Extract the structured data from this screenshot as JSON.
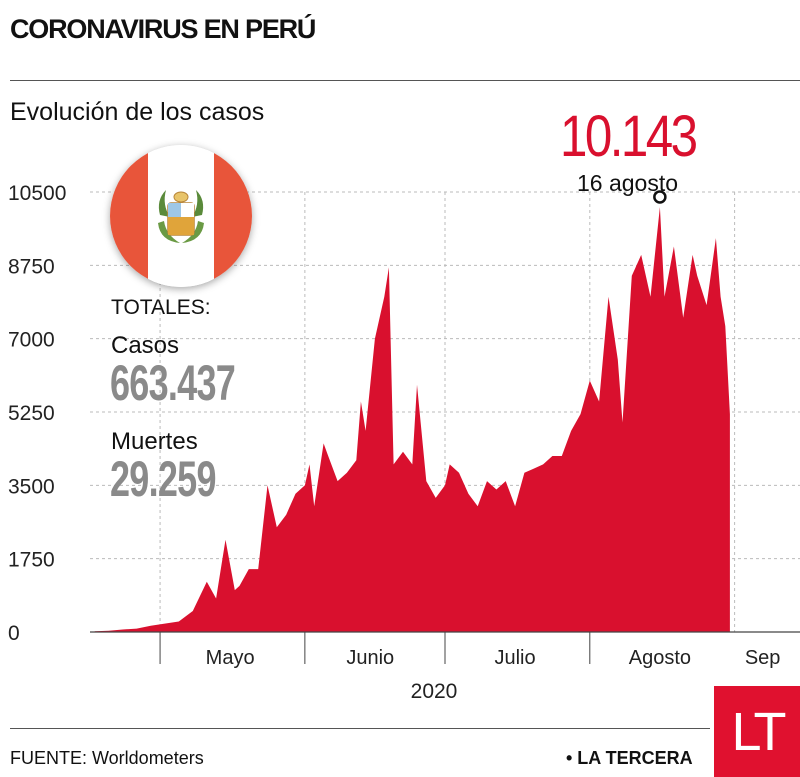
{
  "header": {
    "title": "CORONAVIRUS EN PERÚ",
    "subtitle": "Evolución de los casos"
  },
  "peak": {
    "value": "10.143",
    "date": "16 agosto"
  },
  "totals": {
    "label": "TOTALES:",
    "cases_label": "Casos",
    "cases_value": "663.437",
    "deaths_label": "Muertes",
    "deaths_value": "29.259"
  },
  "footer": {
    "source": "FUENTE: Worldometers",
    "brand": "• LA TERCERA",
    "logo_text": "LT"
  },
  "colors": {
    "series": "#d9102e",
    "grid": "#bbbbbb",
    "flag_red": "#e8553a"
  },
  "chart_data": {
    "type": "area",
    "title": "Evolución de los casos",
    "xlabel": "2020",
    "ylabel": "",
    "ylim": [
      0,
      10500
    ],
    "yticks": [
      "0",
      "1750",
      "3500",
      "5250",
      "7000",
      "8750",
      "10500"
    ],
    "ytick_values": [
      0,
      1750,
      3500,
      5250,
      7000,
      8750,
      10500
    ],
    "month_labels": [
      "Mayo",
      "Junio",
      "Julio",
      "Agosto",
      "Sep"
    ],
    "grid": true,
    "legend": "none",
    "series": [
      {
        "x": [
          "2020-04-17",
          "2020-04-20",
          "2020-04-23",
          "2020-04-26",
          "2020-04-29",
          "2020-05-02",
          "2020-05-05",
          "2020-05-08",
          "2020-05-11",
          "2020-05-13",
          "2020-05-15",
          "2020-05-17",
          "2020-05-18",
          "2020-05-20",
          "2020-05-22",
          "2020-05-24",
          "2020-05-26",
          "2020-05-28",
          "2020-05-30",
          "2020-06-01",
          "2020-06-02",
          "2020-06-03",
          "2020-06-05",
          "2020-06-06",
          "2020-06-08",
          "2020-06-10",
          "2020-06-12",
          "2020-06-13",
          "2020-06-14",
          "2020-06-16",
          "2020-06-18",
          "2020-06-19",
          "2020-06-20",
          "2020-06-22",
          "2020-06-24",
          "2020-06-25",
          "2020-06-27",
          "2020-06-29",
          "2020-07-01",
          "2020-07-02",
          "2020-07-04",
          "2020-07-06",
          "2020-07-08",
          "2020-07-10",
          "2020-07-12",
          "2020-07-14",
          "2020-07-16",
          "2020-07-18",
          "2020-07-20",
          "2020-07-22",
          "2020-07-24",
          "2020-07-26",
          "2020-07-28",
          "2020-07-30",
          "2020-08-01",
          "2020-08-03",
          "2020-08-05",
          "2020-08-07",
          "2020-08-08",
          "2020-08-10",
          "2020-08-12",
          "2020-08-14",
          "2020-08-16",
          "2020-08-17",
          "2020-08-19",
          "2020-08-21",
          "2020-08-23",
          "2020-08-24",
          "2020-08-26",
          "2020-08-28",
          "2020-08-29",
          "2020-08-30",
          "2020-08-31"
        ],
        "y": [
          20,
          30,
          60,
          80,
          150,
          200,
          250,
          500,
          1200,
          800,
          2200,
          1000,
          1100,
          1500,
          1500,
          3500,
          2500,
          2800,
          3300,
          3500,
          4000,
          3000,
          4500,
          4200,
          3600,
          3800,
          4100,
          5500,
          4800,
          7000,
          8000,
          8700,
          4000,
          4300,
          4000,
          5900,
          3600,
          3200,
          3500,
          4000,
          3800,
          3300,
          3000,
          3600,
          3400,
          3600,
          3000,
          3800,
          3900,
          4000,
          4200,
          4200,
          4800,
          5200,
          6000,
          5500,
          8000,
          6500,
          5000,
          8500,
          9000,
          8000,
          10143,
          8000,
          9200,
          7500,
          9000,
          8500,
          7800,
          9400,
          8000,
          7300,
          5200
        ]
      }
    ]
  }
}
